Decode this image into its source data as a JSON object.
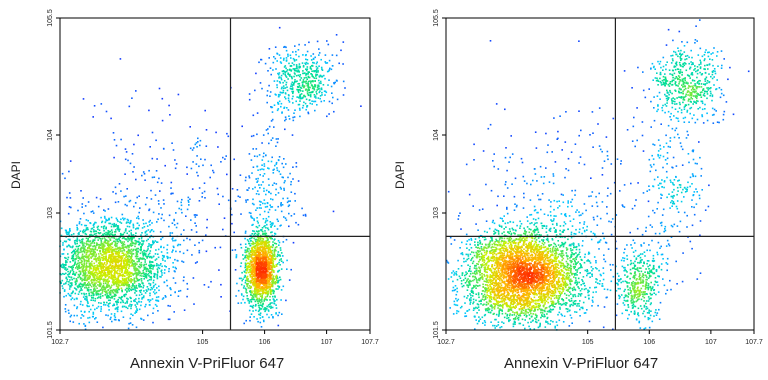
{
  "chart_data": [
    {
      "type": "scatter",
      "title": "",
      "xlabel": "Annexin V-PriFluor 647",
      "ylabel": "DAPI",
      "x_scale": "log",
      "y_scale": "log",
      "xlim": [
        2.7,
        7.7
      ],
      "ylim": [
        1.5,
        5.5
      ],
      "x_ticks": [
        {
          "value": 2.7,
          "label": "10^2.7"
        },
        {
          "value": 5,
          "label": "10^5"
        },
        {
          "value": 6,
          "label": "10^6"
        },
        {
          "value": 7,
          "label": "10^7"
        },
        {
          "value": 7.7,
          "label": "10^7.7"
        }
      ],
      "y_ticks": [
        {
          "value": 1.5,
          "label": "10^1.5"
        },
        {
          "value": 3,
          "label": "10^3"
        },
        {
          "value": 4,
          "label": "10^4"
        },
        {
          "value": 5.5,
          "label": "10^5.5"
        }
      ],
      "quadrant_gate": {
        "x": 5.45,
        "y": 2.7
      },
      "density_colormap": [
        "#1a1aff",
        "#00c8ff",
        "#00e08a",
        "#c8f000",
        "#ffb400",
        "#ff3000"
      ],
      "populations": [
        {
          "center_x": 3.5,
          "center_y": 2.32,
          "sd_x": 0.45,
          "sd_y": 0.3,
          "weight": 0.5
        },
        {
          "center_x": 5.95,
          "center_y": 2.28,
          "sd_x": 0.13,
          "sd_y": 0.25,
          "weight": 0.3
        },
        {
          "center_x": 6.6,
          "center_y": 4.7,
          "sd_x": 0.28,
          "sd_y": 0.22,
          "weight": 0.1
        },
        {
          "center_x": 6.1,
          "center_y": 3.3,
          "sd_x": 0.25,
          "sd_y": 0.45,
          "weight": 0.04
        },
        {
          "center_x": 4.5,
          "center_y": 3.2,
          "sd_x": 0.9,
          "sd_y": 0.7,
          "weight": 0.06
        }
      ]
    },
    {
      "type": "scatter",
      "title": "",
      "xlabel": "Annexin V-PriFluor 647",
      "ylabel": "DAPI",
      "x_scale": "log",
      "y_scale": "log",
      "xlim": [
        2.7,
        7.7
      ],
      "ylim": [
        1.5,
        5.5
      ],
      "x_ticks": [
        {
          "value": 2.7,
          "label": "10^2.7"
        },
        {
          "value": 5,
          "label": "10^5"
        },
        {
          "value": 6,
          "label": "10^6"
        },
        {
          "value": 7,
          "label": "10^7"
        },
        {
          "value": 7.7,
          "label": "10^7.7"
        }
      ],
      "y_ticks": [
        {
          "value": 1.5,
          "label": "10^1.5"
        },
        {
          "value": 3,
          "label": "10^3"
        },
        {
          "value": 4,
          "label": "10^4"
        },
        {
          "value": 5.5,
          "label": "10^5.5"
        }
      ],
      "quadrant_gate": {
        "x": 5.45,
        "y": 2.7
      },
      "density_colormap": [
        "#1a1aff",
        "#00c8ff",
        "#00e08a",
        "#c8f000",
        "#ffb400",
        "#ff3000"
      ],
      "populations": [
        {
          "center_x": 3.95,
          "center_y": 2.2,
          "sd_x": 0.5,
          "sd_y": 0.3,
          "weight": 0.72
        },
        {
          "center_x": 5.85,
          "center_y": 2.05,
          "sd_x": 0.18,
          "sd_y": 0.25,
          "weight": 0.08
        },
        {
          "center_x": 6.6,
          "center_y": 4.65,
          "sd_x": 0.3,
          "sd_y": 0.25,
          "weight": 0.1
        },
        {
          "center_x": 6.4,
          "center_y": 3.4,
          "sd_x": 0.3,
          "sd_y": 0.5,
          "weight": 0.04
        },
        {
          "center_x": 4.6,
          "center_y": 3.2,
          "sd_x": 0.9,
          "sd_y": 0.6,
          "weight": 0.06
        }
      ]
    }
  ]
}
